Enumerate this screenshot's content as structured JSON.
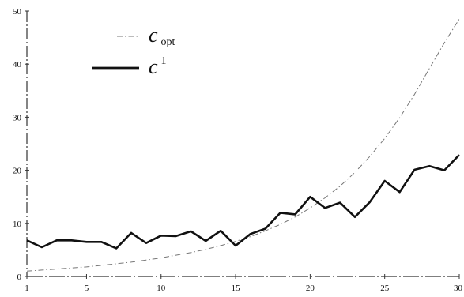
{
  "chart_data": {
    "type": "line",
    "title": "",
    "xlabel": "",
    "ylabel": "",
    "xlim": [
      1,
      30
    ],
    "ylim": [
      0,
      50
    ],
    "x_ticks": [
      1,
      5,
      10,
      15,
      20,
      25,
      30
    ],
    "y_ticks": [
      0,
      10,
      20,
      30,
      40,
      50
    ],
    "grid": false,
    "legend_position": "top-left",
    "series": [
      {
        "name": "c_opt",
        "legend_base": "c",
        "legend_script": "opt",
        "legend_script_kind": "sub",
        "style": "dash-dot",
        "color": "#777777",
        "x": [
          1,
          2,
          3,
          4,
          5,
          6,
          7,
          8,
          9,
          10,
          11,
          12,
          13,
          14,
          15,
          16,
          17,
          18,
          19,
          20,
          21,
          22,
          23,
          24,
          25,
          26,
          27,
          28,
          29,
          30
        ],
        "values": [
          1.0,
          1.2,
          1.4,
          1.6,
          1.8,
          2.1,
          2.4,
          2.7,
          3.1,
          3.5,
          4.0,
          4.5,
          5.1,
          5.8,
          6.6,
          7.5,
          8.6,
          9.8,
          11.2,
          12.9,
          14.8,
          17.0,
          19.6,
          22.6,
          26.0,
          29.9,
          34.3,
          39.2,
          44.0,
          48.5
        ]
      },
      {
        "name": "c^1",
        "legend_base": "c",
        "legend_script": "1",
        "legend_script_kind": "sup",
        "style": "solid",
        "color": "#111111",
        "x": [
          1,
          2,
          3,
          4,
          5,
          6,
          7,
          8,
          9,
          10,
          11,
          12,
          13,
          14,
          15,
          16,
          17,
          18,
          19,
          20,
          21,
          22,
          23,
          24,
          25,
          26,
          27,
          28,
          29,
          30
        ],
        "values": [
          6.8,
          5.5,
          6.8,
          6.8,
          6.5,
          6.5,
          5.3,
          8.2,
          6.3,
          7.7,
          7.6,
          8.5,
          6.7,
          8.6,
          5.8,
          8.0,
          9.0,
          12.0,
          11.7,
          15.0,
          12.9,
          13.9,
          11.2,
          14.0,
          18.0,
          15.9,
          20.1,
          20.8,
          20.0,
          22.9
        ]
      }
    ]
  }
}
